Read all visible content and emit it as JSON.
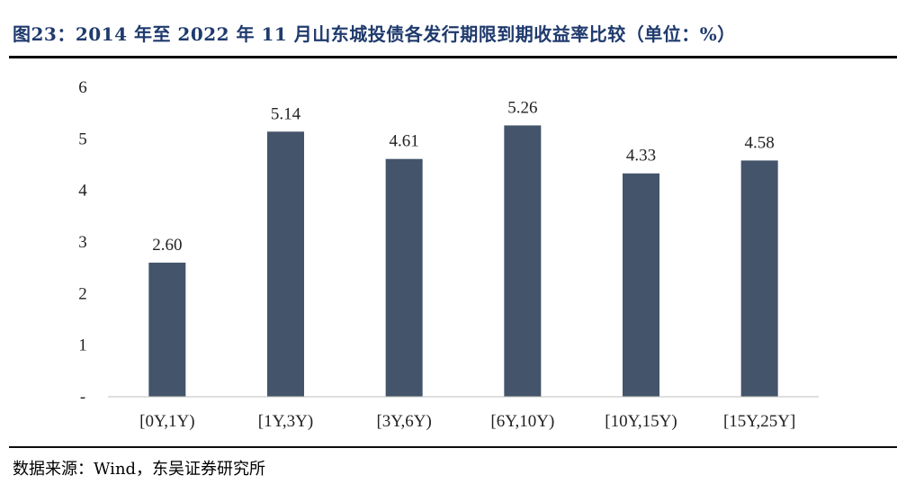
{
  "header": {
    "title": "图23：2014 年至 2022 年 11 月山东城投债各发行期限到期收益率比较（单位：%）"
  },
  "footer": {
    "source": "数据来源：Wind，东吴证券研究所"
  },
  "colors": {
    "bar": "#44546a",
    "title": "#1f3a6d",
    "axis": "#bfbfbf"
  },
  "chart_data": {
    "type": "bar",
    "categories": [
      "[0Y,1Y)",
      "[1Y,3Y)",
      "[3Y,6Y)",
      "[6Y,10Y)",
      "[10Y,15Y)",
      "[15Y,25Y]"
    ],
    "values": [
      2.6,
      5.14,
      4.61,
      5.26,
      4.33,
      4.58
    ],
    "data_labels": [
      "2.60",
      "5.14",
      "4.61",
      "5.26",
      "4.33",
      "4.58"
    ],
    "y_ticks": [
      0,
      1,
      2,
      3,
      4,
      5,
      6
    ],
    "y_tick_labels": [
      "-",
      "1",
      "2",
      "3",
      "4",
      "5",
      "6"
    ],
    "ylim": [
      0,
      6
    ],
    "grid": false,
    "legend": "none"
  }
}
